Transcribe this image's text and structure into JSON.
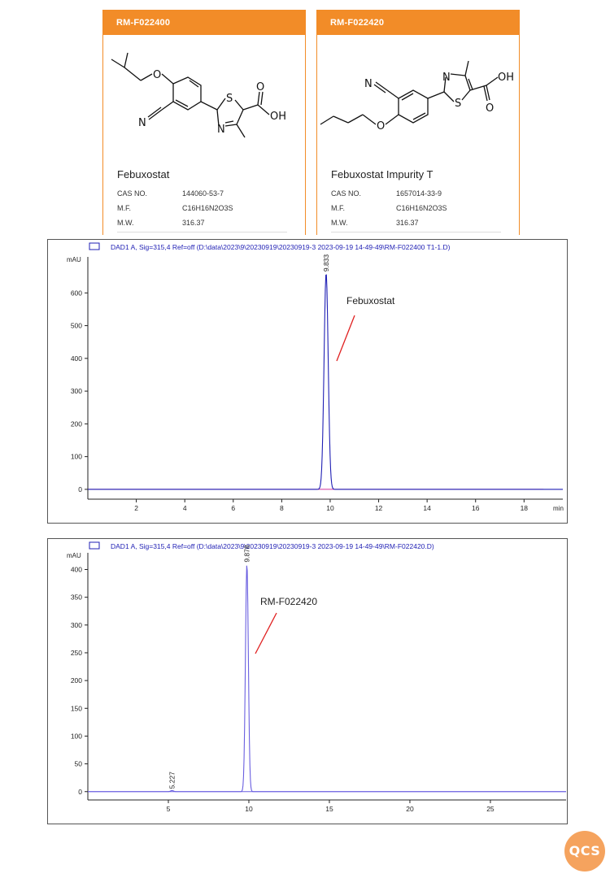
{
  "cards": [
    {
      "code": "RM-F022400",
      "name": "Febuxostat",
      "props": [
        {
          "key": "CAS NO.",
          "value": "144060-53-7"
        },
        {
          "key": "M.F.",
          "value": "C16H16N2O3S"
        },
        {
          "key": "M.W.",
          "value": "316.37"
        }
      ]
    },
    {
      "code": "RM-F022420",
      "name": "Febuxostat Impurity T",
      "props": [
        {
          "key": "CAS NO.",
          "value": "1657014-33-9"
        },
        {
          "key": "M.F.",
          "value": "C16H16N2O3S"
        },
        {
          "key": "M.W.",
          "value": "316.37"
        }
      ]
    }
  ],
  "structure_labels": {
    "n": "N",
    "s": "S",
    "o": "O",
    "oh": "OH"
  },
  "chart_data": [
    {
      "type": "line",
      "title": "DAD1 A, Sig=315,4 Ref=off (D:\\data\\2023\\9\\20230919\\20230919-3 2023-09-19 14-49-49\\RM-F022400 T1-1.D)",
      "ylabel": "mAU",
      "xlabel": "min",
      "xlim": [
        0,
        19.6
      ],
      "ylim": [
        -30,
        710
      ],
      "xticks": [
        2,
        4,
        6,
        8,
        10,
        12,
        14,
        16,
        18
      ],
      "yticks": [
        0,
        100,
        200,
        300,
        400,
        500,
        600
      ],
      "peaks": [
        {
          "rt": 9.833,
          "height": 660,
          "label": "9.833"
        }
      ],
      "annotation": "Febuxostat",
      "series_color": "#1f1fb4",
      "baseline_color": "#d0309a"
    },
    {
      "type": "line",
      "title": "DAD1 A, Sig=315,4 Ref=off (D:\\data\\2023\\9\\20230919\\20230919-3 2023-09-19 14-49-49\\RM-F022420.D)",
      "ylabel": "mAU",
      "xlabel": "",
      "xlim": [
        0,
        29.7
      ],
      "ylim": [
        -15,
        430
      ],
      "xticks": [
        5,
        10,
        15,
        20,
        25
      ],
      "yticks": [
        0,
        50,
        100,
        150,
        200,
        250,
        300,
        350,
        400
      ],
      "peaks": [
        {
          "rt": 5.227,
          "height": 2,
          "label": "5.227"
        },
        {
          "rt": 9.878,
          "height": 410,
          "label": "9.878"
        }
      ],
      "annotation": "RM-F022420",
      "series_color": "#6a5fe0",
      "baseline_color": "#6a5fe0"
    }
  ],
  "logo": {
    "text": "QCS",
    "color": "#f5a35e"
  },
  "colors": {
    "accent": "#f28c28"
  }
}
